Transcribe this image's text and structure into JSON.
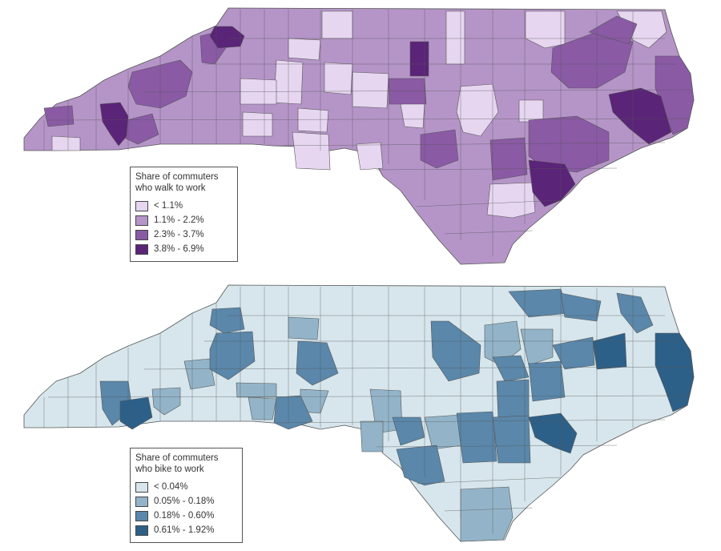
{
  "walk_map": {
    "legend_title_line1": "Share of commuters",
    "legend_title_line2": "who walk to work",
    "legend": [
      {
        "label": "< 1.1%",
        "color": "#e6d6f0"
      },
      {
        "label": "1.1% - 2.2%",
        "color": "#b595c8"
      },
      {
        "label": "2.3% - 3.7%",
        "color": "#8a5aa5"
      },
      {
        "label": "3.8% - 6.9%",
        "color": "#5a2478"
      }
    ]
  },
  "bike_map": {
    "legend_title_line1": "Share of commuters",
    "legend_title_line2": "who bike to work",
    "legend": [
      {
        "label": "< 0.04%",
        "color": "#d6e6ec"
      },
      {
        "label": "0.05% - 0.18%",
        "color": "#93b4c8"
      },
      {
        "label": "0.18% - 0.60%",
        "color": "#5a87aa"
      },
      {
        "label": "0.61% - 1.92%",
        "color": "#2d6088"
      }
    ]
  }
}
